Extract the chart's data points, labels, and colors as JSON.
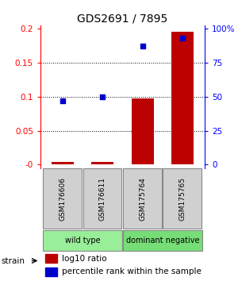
{
  "title": "GDS2691 / 7895",
  "samples": [
    "GSM176606",
    "GSM176611",
    "GSM175764",
    "GSM175765"
  ],
  "log10_ratio": [
    0.004,
    0.004,
    0.097,
    0.195
  ],
  "percentile_rank": [
    47,
    50,
    87,
    93
  ],
  "left_ylim": [
    -0.005,
    0.205
  ],
  "right_ylim": [
    -2.5,
    102.5
  ],
  "left_yticks": [
    0.0,
    0.05,
    0.1,
    0.15,
    0.2
  ],
  "left_yticklabels": [
    "-0",
    "0.05",
    "0.1",
    "0.15",
    "0.2"
  ],
  "right_yticks": [
    0,
    25,
    50,
    75,
    100
  ],
  "right_yticklabels": [
    "0",
    "25",
    "50",
    "75",
    "100%"
  ],
  "bar_color": "#bb0000",
  "dot_color": "#0000cc",
  "groups": [
    {
      "label": "wild type",
      "samples": [
        0,
        1
      ],
      "color": "#99ee99"
    },
    {
      "label": "dominant negative",
      "samples": [
        2,
        3
      ],
      "color": "#77dd77"
    }
  ],
  "strain_label": "strain",
  "legend_bar_label": "log10 ratio",
  "legend_dot_label": "percentile rank within the sample",
  "grid_yticks": [
    0.05,
    0.1,
    0.15
  ],
  "background_color": "#ffffff"
}
